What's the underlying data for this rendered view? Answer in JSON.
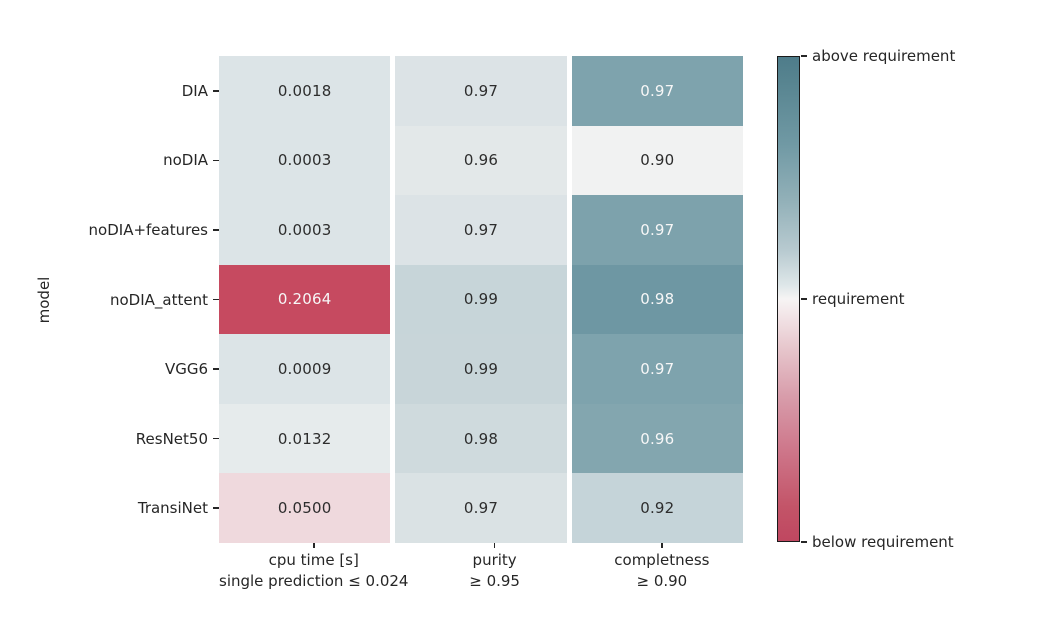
{
  "figure": {
    "background": "#ffffff",
    "text_color": "#262626"
  },
  "chart_data": {
    "type": "heatmap",
    "title": "",
    "xlabel": "",
    "ylabel": "model",
    "legend_position": "right-colorbar",
    "grid": false,
    "rows": [
      "DIA",
      "noDIA",
      "noDIA+features",
      "noDIA_attent",
      "VGG6",
      "ResNet50",
      "TransiNet"
    ],
    "columns": [
      {
        "label": "cpu time [s]",
        "requirement": "single prediction ≤ 0.024"
      },
      {
        "label": "purity",
        "requirement": "≥ 0.95"
      },
      {
        "label": "completness",
        "requirement": "≥ 0.90"
      }
    ],
    "values": [
      [
        "0.0018",
        "0.97",
        "0.97"
      ],
      [
        "0.0003",
        "0.96",
        "0.90"
      ],
      [
        "0.0003",
        "0.97",
        "0.97"
      ],
      [
        "0.2064",
        "0.99",
        "0.98"
      ],
      [
        "0.0009",
        "0.99",
        "0.97"
      ],
      [
        "0.0132",
        "0.98",
        "0.96"
      ],
      [
        "0.0500",
        "0.97",
        "0.92"
      ]
    ],
    "cell_colors": [
      [
        "#dce4e7",
        "#dce3e6",
        "#7ea3ad"
      ],
      [
        "#dce4e7",
        "#e3e8e9",
        "#f1f2f2"
      ],
      [
        "#dce4e7",
        "#dce3e6",
        "#7da2ac"
      ],
      [
        "#c64a60",
        "#c7d5d9",
        "#6e97a3"
      ],
      [
        "#dce4e7",
        "#c8d5d9",
        "#7ea3ad"
      ],
      [
        "#e6ebec",
        "#cfdadd",
        "#83a6af"
      ],
      [
        "#efd9dd",
        "#dae2e4",
        "#c5d4d9"
      ]
    ],
    "cell_text_colors": [
      [
        "#2d2d2d",
        "#2d2d2d",
        "#f7f7f7"
      ],
      [
        "#2d2d2d",
        "#2d2d2d",
        "#2d2d2d"
      ],
      [
        "#2d2d2d",
        "#2d2d2d",
        "#f7f7f7"
      ],
      [
        "#f7f7f7",
        "#2d2d2d",
        "#f7f7f7"
      ],
      [
        "#2d2d2d",
        "#2d2d2d",
        "#f7f7f7"
      ],
      [
        "#2d2d2d",
        "#2d2d2d",
        "#f7f7f7"
      ],
      [
        "#2d2d2d",
        "#2d2d2d",
        "#2d2d2d"
      ]
    ],
    "colorbar": {
      "labels": [
        "above requirement",
        "requirement",
        "below requirement"
      ],
      "gradient": [
        {
          "color": "#4e7c8a",
          "pos": "0%"
        },
        {
          "color": "#578490",
          "pos": "5%"
        },
        {
          "color": "#7099a4",
          "pos": "18%"
        },
        {
          "color": "#93b1b9",
          "pos": "30%"
        },
        {
          "color": "#b8cad0",
          "pos": "40%"
        },
        {
          "color": "#dde6e8",
          "pos": "47%"
        },
        {
          "color": "#f6f4f4",
          "pos": "50%"
        },
        {
          "color": "#f3e7e9",
          "pos": "53%"
        },
        {
          "color": "#e7c7cd",
          "pos": "60%"
        },
        {
          "color": "#d89dab",
          "pos": "70%"
        },
        {
          "color": "#cd7488",
          "pos": "82%"
        },
        {
          "color": "#c35468",
          "pos": "93%"
        },
        {
          "color": "#bf4760",
          "pos": "100%"
        }
      ]
    }
  }
}
